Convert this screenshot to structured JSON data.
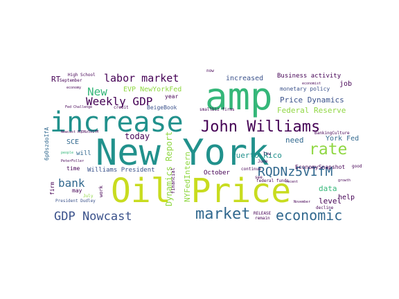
{
  "palette": {
    "purple": "#440154",
    "indigo": "#3b528b",
    "blue": "#31688e",
    "teal": "#21918c",
    "green": "#35b779",
    "lime": "#90d743",
    "yellow": "#c8dc1f"
  },
  "words": [
    {
      "text": "New York",
      "color": "teal"
    },
    {
      "text": "Oil Price",
      "color": "yellow"
    },
    {
      "text": "amp",
      "color": "green"
    },
    {
      "text": "increase",
      "color": "teal"
    },
    {
      "text": "John Williams",
      "color": "purple"
    },
    {
      "text": "RQDNz5VIfM",
      "color": "blue"
    },
    {
      "text": "market",
      "color": "blue"
    },
    {
      "text": "economic",
      "color": "blue"
    },
    {
      "text": "GDP Nowcast",
      "color": "indigo"
    },
    {
      "text": "Weekly GDP",
      "color": "purple"
    },
    {
      "text": "rate",
      "color": "lime"
    },
    {
      "text": "labor market",
      "color": "purple"
    },
    {
      "text": "New",
      "color": "green"
    },
    {
      "text": "bank",
      "color": "blue"
    },
    {
      "text": "Price Dynamics",
      "color": "indigo"
    },
    {
      "text": "Federal Reserve",
      "color": "lime"
    },
    {
      "text": "EVP NewYorkFed",
      "color": "lime"
    },
    {
      "text": "increased",
      "color": "indigo"
    },
    {
      "text": "Business activity",
      "color": "purple"
    },
    {
      "text": "job",
      "color": "purple"
    },
    {
      "text": "monetary policy",
      "color": "indigo"
    },
    {
      "text": "Dynamics Report",
      "color": "lime"
    },
    {
      "text": "NYFedIntern",
      "color": "lime"
    },
    {
      "text": "Puerto Rico",
      "color": "teal"
    },
    {
      "text": "need",
      "color": "blue"
    },
    {
      "text": "York Fed",
      "color": "blue"
    },
    {
      "text": "level",
      "color": "purple"
    },
    {
      "text": "data",
      "color": "green"
    },
    {
      "text": "help",
      "color": "purple"
    },
    {
      "text": "today",
      "color": "purple"
    },
    {
      "text": "SCE",
      "color": "blue"
    },
    {
      "text": "will",
      "color": "blue"
    },
    {
      "text": "time",
      "color": "purple"
    },
    {
      "text": "Williams President",
      "color": "indigo"
    },
    {
      "text": "October",
      "color": "purple"
    },
    {
      "text": "EconomySnapshot",
      "color": "purple"
    },
    {
      "text": "BeigeBook",
      "color": "indigo"
    },
    {
      "text": "year",
      "color": "purple"
    },
    {
      "text": "RT",
      "color": "purple"
    },
    {
      "text": "High School",
      "color": "purple"
    },
    {
      "text": "September",
      "color": "purple"
    },
    {
      "text": "economy",
      "color": "purple"
    },
    {
      "text": "Fed Challenge",
      "color": "purple"
    },
    {
      "text": "credit",
      "color": "purple"
    },
    {
      "text": "smallbiz firms",
      "color": "purple"
    },
    {
      "text": "Newcast RQDNz5VIfM",
      "color": "purple"
    },
    {
      "text": "6p0szdoIfA",
      "color": "blue"
    },
    {
      "text": "people",
      "color": "green"
    },
    {
      "text": "PeterFoller",
      "color": "purple"
    },
    {
      "text": "President Dudley",
      "color": "indigo"
    },
    {
      "text": "firm",
      "color": "purple"
    },
    {
      "text": "may",
      "color": "purple"
    },
    {
      "text": "July",
      "color": "lime"
    },
    {
      "text": "work",
      "color": "purple"
    },
    {
      "text": "financial",
      "color": "purple"
    },
    {
      "text": "continue",
      "color": "purple"
    },
    {
      "text": "June",
      "color": "purple"
    },
    {
      "text": "low",
      "color": "purple"
    },
    {
      "text": "federal funds",
      "color": "purple"
    },
    {
      "text": "good",
      "color": "purple"
    },
    {
      "text": "growth",
      "color": "purple"
    },
    {
      "text": "decline",
      "color": "purple"
    },
    {
      "text": "RELEASE",
      "color": "purple"
    },
    {
      "text": "remain",
      "color": "purple"
    },
    {
      "text": "November",
      "color": "purple"
    },
    {
      "text": "see",
      "color": "purple"
    },
    {
      "text": "economist",
      "color": "purple"
    },
    {
      "text": "BankingCulture",
      "color": "purple"
    },
    {
      "text": "now",
      "color": "purple"
    },
    {
      "text": "recent",
      "color": "purple"
    }
  ]
}
